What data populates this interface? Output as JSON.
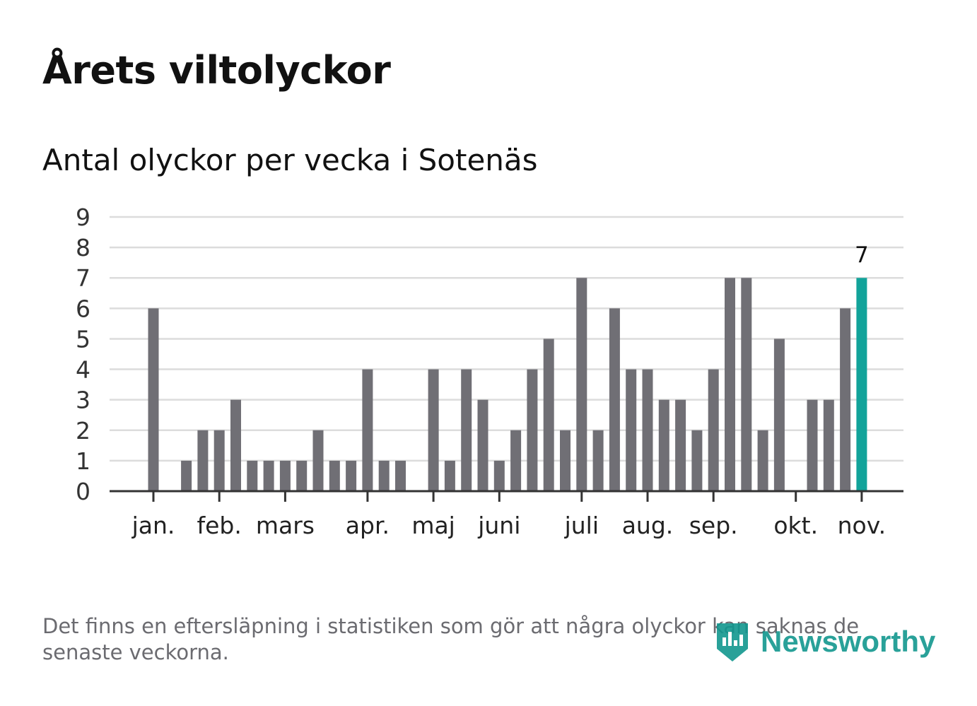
{
  "title": "Årets viltolyckor",
  "subtitle": "Antal olyckor per vecka i Sotenäs",
  "footnote": "Det finns en eftersläpning i statistiken som gör att några olyckor kan saknas de senaste veckorna.",
  "brand": "Newsworthy",
  "colors": {
    "bar": "#706f75",
    "highlight": "#12a39a",
    "grid": "#dcdcdc",
    "axis": "#333333",
    "text": "#111111",
    "muted": "#6b6b70",
    "brand": "#12978f"
  },
  "chart_data": {
    "type": "bar",
    "title": "Antal olyckor per vecka i Sotenäs",
    "xlabel": "",
    "ylabel": "",
    "ylim": [
      0,
      9
    ],
    "yticks": [
      0,
      1,
      2,
      3,
      4,
      5,
      6,
      7,
      8,
      9
    ],
    "grid": true,
    "values": [
      6,
      0,
      1,
      2,
      2,
      3,
      1,
      1,
      1,
      1,
      2,
      1,
      1,
      4,
      1,
      1,
      0,
      4,
      1,
      4,
      3,
      1,
      2,
      4,
      5,
      2,
      7,
      2,
      6,
      4,
      4,
      3,
      3,
      2,
      4,
      7,
      7,
      2,
      5,
      0,
      3,
      3,
      6,
      7
    ],
    "highlight_index": 43,
    "highlight_label": "7",
    "month_ticks": [
      {
        "label": "jan.",
        "week_index": 0
      },
      {
        "label": "feb.",
        "week_index": 4
      },
      {
        "label": "mars",
        "week_index": 8
      },
      {
        "label": "apr.",
        "week_index": 13
      },
      {
        "label": "maj",
        "week_index": 17
      },
      {
        "label": "juni",
        "week_index": 21
      },
      {
        "label": "juli",
        "week_index": 26
      },
      {
        "label": "aug.",
        "week_index": 30
      },
      {
        "label": "sep.",
        "week_index": 34
      },
      {
        "label": "okt.",
        "week_index": 39
      },
      {
        "label": "nov.",
        "week_index": 43
      }
    ]
  }
}
